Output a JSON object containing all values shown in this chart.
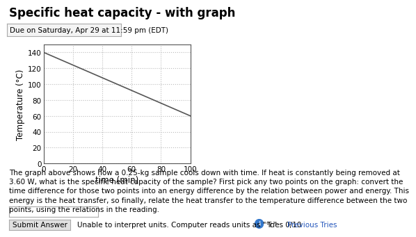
{
  "title": "Specific heat capacity - with graph",
  "due_text": "Due on Saturday, Apr 29 at 11:59 pm (EDT)",
  "xlabel": "time (min)",
  "ylabel": "Temperature (°C)",
  "xlim": [
    0,
    100
  ],
  "ylim": [
    0,
    150
  ],
  "xticks": [
    0,
    20,
    40,
    60,
    80,
    100
  ],
  "yticks": [
    0,
    20,
    40,
    60,
    80,
    100,
    120,
    140
  ],
  "line_x": [
    0,
    100
  ],
  "line_y": [
    140,
    60
  ],
  "line_color": "#555555",
  "grid_color": "#bbbbbb",
  "background_color": "#ffffff",
  "body_lines": [
    "The graph above shows how a 0.25-kg sample cools down with time. If heat is constantly being removed at",
    "3.60 W, what is the specific heat capacity of the sample? First pick any two points on the graph: convert the",
    "time difference for those two points into an energy difference by the relation between power and energy. This",
    "energy is the heat transfer, so finally, relate the heat transfer to the temperature difference between the two",
    "points, using the relations in the reading."
  ],
  "submit_text": "Submit Answer",
  "error_text": "Unable to interpret units. Computer reads units as \"°c\".",
  "tries_text": "Tries 0/10",
  "prev_text": "Previous Tries",
  "font_family": "DejaVu Sans",
  "title_fontsize": 12,
  "due_fontsize": 7.5,
  "body_fontsize": 7.5,
  "axis_tick_fontsize": 7.5,
  "axis_label_fontsize": 8.5,
  "bottom_fontsize": 7.5
}
